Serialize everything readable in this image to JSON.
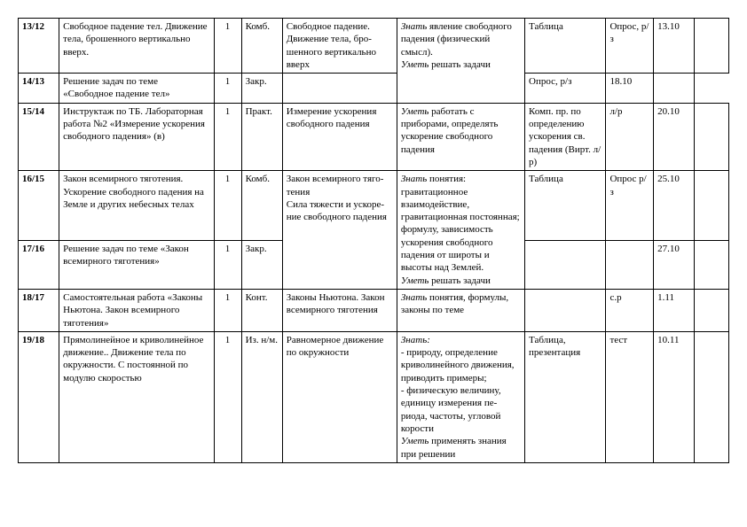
{
  "rows": [
    {
      "num": "13/12",
      "topic": "Свободное падение тел. Движение тела, брошенного вертикально вверх.",
      "hours": "1",
      "type": "Комб.",
      "content": "Свободное падение. Движение тела, бро-шенного вертикально вверх",
      "req_know": "Знать явление свободного падения (физический смысл).",
      "req_can": "Уметь решать задачи",
      "equip": "Таблица",
      "ctrl": "Опрос, р/з",
      "date": "13.10",
      "rowspan_content": 1,
      "rowspan_req": 2
    },
    {
      "num": "14/13",
      "topic": "Решение задач по теме «Свободное падение тел»",
      "hours": "1",
      "type": "Закр.",
      "content": "",
      "equip": "",
      "ctrl": "Опрос, р/з",
      "date": "18.10",
      "skip_content": true,
      "skip_req": true
    },
    {
      "num": "15/14",
      "topic": "Инструктаж по ТБ. Лабораторная работа №2 «Измерение ускорения свободного падения» (в)",
      "hours": "1",
      "type": "Практ.",
      "content": "Измерение ускорения свободного падения",
      "req_know": "",
      "req_can": "Уметь работать с приборами, определять ускорение свободного падения",
      "equip": "Комп. пр. по определению ускорения св. падения (Вирт. л/р)",
      "ctrl": "л/р",
      "date": "20.10"
    },
    {
      "num": "16/15",
      "topic": "Закон всемирного тяготения. Ускорение свободного падения на Земле и других небесных телах",
      "hours": "1",
      "type": "Комб.",
      "content": "Закон всемирного тяго-тения\nСила тяжести и ускоре-ние свободного падения",
      "req_know": "Знать понятия: гравитационное взаимодействие, гравитационная постоянная; формулу, зависимость ускорения свободного падения от широты и высоты над Землей.",
      "req_can": "Уметь решать задачи",
      "equip": "Таблица",
      "ctrl": "Опрос р/з",
      "date": "25.10",
      "rowspan_content": 2,
      "rowspan_req": 2
    },
    {
      "num": "17/16",
      "topic": "Решение задач по теме «Закон всемирного тяготения»",
      "hours": "1",
      "type": "Закр.",
      "equip": "",
      "ctrl": "",
      "date": "27.10",
      "skip_content": true,
      "skip_req": true
    },
    {
      "num": "18/17",
      "topic": "Самостоятельная работа «Законы Ньютона. Закон всемирного тяготения»",
      "hours": "1",
      "type": "Конт.",
      "content": "Законы Ньютона. Закон всемирного тяготения",
      "req_know": "Знать понятия, формулы, законы по теме",
      "req_can": "",
      "equip": "",
      "ctrl": "с.р",
      "date": "1.11"
    },
    {
      "num": "19/18",
      "topic": "Прямолинейное и криволинейное движение.. Движение тела по окружности. С постоянной по модулю скоростью",
      "hours": "1",
      "type": "Из. н/м.",
      "content": "Равномерное движение по окружности",
      "req_know": "Знать:\n- природу, определение криволинейного движения, приводить примеры;\n- физическую величину, единицу измерения пе-риода, частоты, угловой корости",
      "req_can": "Уметь применять знания при решении",
      "equip": "Таблица, презентация",
      "ctrl": "тест",
      "date": "10.11"
    }
  ]
}
